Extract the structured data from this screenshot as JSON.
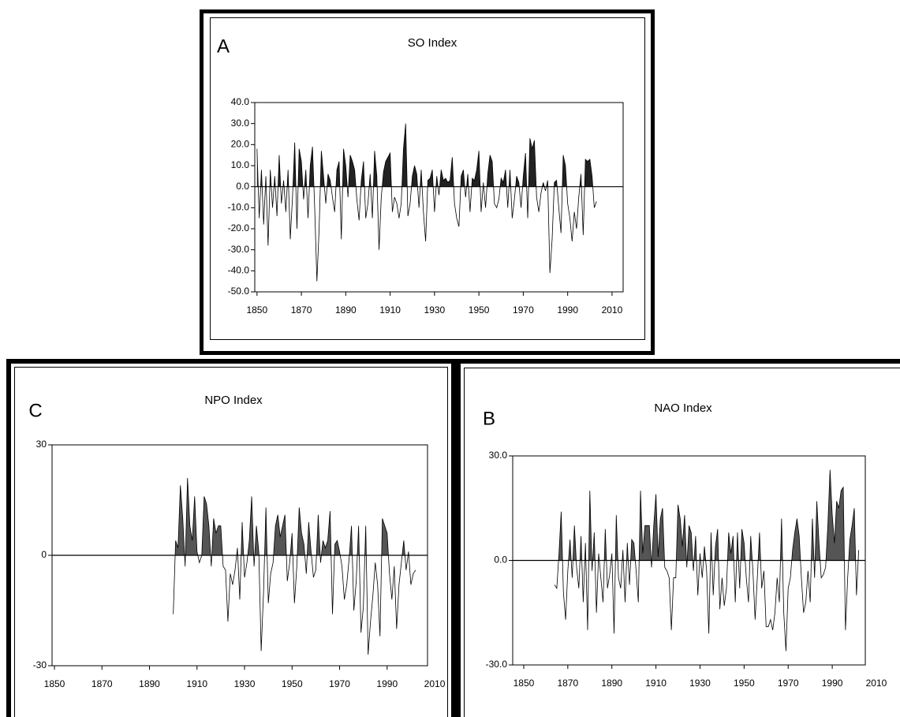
{
  "chart_data": [
    {
      "type": "line",
      "panel_label": "A",
      "title": "SO Index",
      "color": "#000000",
      "fill_color": "#222222",
      "zero_line": true,
      "x": [
        1850,
        1851,
        1852,
        1853,
        1854,
        1855,
        1856,
        1857,
        1858,
        1859,
        1860,
        1861,
        1862,
        1863,
        1864,
        1865,
        1866,
        1867,
        1868,
        1869,
        1870,
        1871,
        1872,
        1873,
        1874,
        1875,
        1876,
        1877,
        1878,
        1879,
        1880,
        1881,
        1882,
        1883,
        1884,
        1885,
        1886,
        1887,
        1888,
        1889,
        1890,
        1891,
        1892,
        1893,
        1894,
        1895,
        1896,
        1897,
        1898,
        1899,
        1900,
        1901,
        1902,
        1903,
        1904,
        1905,
        1906,
        1907,
        1908,
        1909,
        1910,
        1911,
        1912,
        1913,
        1914,
        1915,
        1916,
        1917,
        1918,
        1919,
        1920,
        1921,
        1922,
        1923,
        1924,
        1925,
        1926,
        1927,
        1928,
        1929,
        1930,
        1931,
        1932,
        1933,
        1934,
        1935,
        1936,
        1937,
        1938,
        1939,
        1940,
        1941,
        1942,
        1943,
        1944,
        1945,
        1946,
        1947,
        1948,
        1949,
        1950,
        1951,
        1952,
        1953,
        1954,
        1955,
        1956,
        1957,
        1958,
        1959,
        1960,
        1961,
        1962,
        1963,
        1964,
        1965,
        1966,
        1967,
        1968,
        1969,
        1970,
        1971,
        1972,
        1973,
        1974,
        1975,
        1976,
        1977,
        1978,
        1979,
        1980,
        1981,
        1982,
        1983,
        1984,
        1985,
        1986,
        1987,
        1988,
        1989,
        1990,
        1991,
        1992,
        1993,
        1994,
        1995,
        1996,
        1997,
        1998,
        1999,
        2000,
        2001,
        2002,
        2003
      ],
      "values": [
        18,
        -15,
        8,
        -18,
        5,
        -28,
        8,
        -10,
        5,
        -14,
        15,
        -8,
        3,
        -12,
        8,
        -25,
        -5,
        21,
        -20,
        18,
        12,
        -6,
        8,
        -15,
        10,
        19,
        -10,
        -45,
        -20,
        17,
        5,
        -8,
        6,
        3,
        -5,
        -12,
        8,
        12,
        -25,
        18,
        10,
        -5,
        15,
        12,
        8,
        -6,
        -16,
        3,
        12,
        -15,
        -8,
        6,
        -15,
        17,
        5,
        -30,
        -5,
        7,
        12,
        14,
        16,
        -12,
        -5,
        -8,
        -15,
        -8,
        18,
        30,
        -14,
        -8,
        5,
        10,
        6,
        -10,
        8,
        -12,
        -26,
        3,
        4,
        8,
        -12,
        5,
        -4,
        8,
        3,
        4,
        2,
        3,
        14,
        -8,
        -15,
        -19,
        5,
        8,
        -5,
        6,
        -12,
        4,
        3,
        8,
        17,
        -12,
        2,
        -10,
        6,
        15,
        12,
        -8,
        -10,
        -6,
        4,
        2,
        8,
        -10,
        8,
        -15,
        -6,
        5,
        2,
        -10,
        5,
        16,
        -15,
        23,
        18,
        22,
        -5,
        -12,
        -3,
        2,
        -2,
        3,
        -41,
        -25,
        2,
        3,
        -10,
        -22,
        15,
        10,
        -8,
        -15,
        -26,
        -12,
        -20,
        -5,
        6,
        -23,
        13,
        12,
        13,
        5,
        -10,
        -7
      ],
      "xlim": [
        1849,
        2015
      ],
      "xticks": [
        1850,
        1870,
        1890,
        1910,
        1930,
        1950,
        1970,
        1990,
        2010
      ],
      "ylim": [
        -50,
        40
      ],
      "yticks": [
        {
          "value": 40,
          "label": "40.0"
        },
        {
          "value": 30,
          "label": "30.0"
        },
        {
          "value": 20,
          "label": "20.0"
        },
        {
          "value": 10,
          "label": "10.0"
        },
        {
          "value": 0,
          "label": "0.0"
        },
        {
          "value": -10,
          "label": "-10.0"
        },
        {
          "value": -20,
          "label": "-20.0"
        },
        {
          "value": -30,
          "label": "-30.0"
        },
        {
          "value": -40,
          "label": "-40.0"
        },
        {
          "value": -50,
          "label": "-50.0"
        }
      ]
    },
    {
      "type": "line",
      "panel_label": "C",
      "title": "NPO Index",
      "color": "#000000",
      "fill_color": "#555555",
      "zero_line": true,
      "x": [
        1900,
        1901,
        1902,
        1903,
        1904,
        1905,
        1906,
        1907,
        1908,
        1909,
        1910,
        1911,
        1912,
        1913,
        1914,
        1915,
        1916,
        1917,
        1918,
        1919,
        1920,
        1921,
        1922,
        1923,
        1924,
        1925,
        1926,
        1927,
        1928,
        1929,
        1930,
        1931,
        1932,
        1933,
        1934,
        1935,
        1936,
        1937,
        1938,
        1939,
        1940,
        1941,
        1942,
        1943,
        1944,
        1945,
        1946,
        1947,
        1948,
        1949,
        1950,
        1951,
        1952,
        1953,
        1954,
        1955,
        1956,
        1957,
        1958,
        1959,
        1960,
        1961,
        1962,
        1963,
        1964,
        1965,
        1966,
        1967,
        1968,
        1969,
        1970,
        1971,
        1972,
        1973,
        1974,
        1975,
        1976,
        1977,
        1978,
        1979,
        1980,
        1981,
        1982,
        1983,
        1984,
        1985,
        1986,
        1987,
        1988,
        1989,
        1990,
        1991,
        1992,
        1993,
        1994,
        1995,
        1996,
        1997,
        1998,
        1999,
        2000,
        2001,
        2002
      ],
      "values": [
        -16,
        4,
        2,
        19,
        10,
        -3,
        21,
        8,
        4,
        16,
        1,
        -2,
        0,
        16,
        14,
        8,
        -3,
        10,
        6,
        8,
        8,
        -3,
        -4,
        -18,
        -5,
        -8,
        -4,
        2,
        -12,
        9,
        -6,
        -2,
        4,
        16,
        -3,
        8,
        1,
        -26,
        -10,
        13,
        -13,
        -5,
        -2,
        8,
        11,
        5,
        8,
        11,
        -7,
        -2,
        6,
        -13,
        -3,
        13,
        6,
        3,
        -5,
        9,
        1,
        -6,
        -4,
        11,
        -2,
        4,
        2,
        4,
        12,
        -16,
        3,
        4,
        1,
        -3,
        -12,
        -8,
        -1,
        8,
        -15,
        -7,
        8,
        -21,
        -14,
        8,
        -27,
        -18,
        -11,
        -2,
        -8,
        -22,
        10,
        8,
        6,
        -5,
        -12,
        -3,
        -20,
        -8,
        -2,
        4,
        -4,
        1,
        -8,
        -5,
        -4
      ],
      "xlim": [
        1849,
        2007
      ],
      "xticks": [
        1850,
        1870,
        1890,
        1910,
        1930,
        1950,
        1970,
        1990,
        2010
      ],
      "ylim": [
        -30,
        30
      ],
      "yticks": [
        30,
        0,
        -30
      ]
    },
    {
      "type": "line",
      "panel_label": "B",
      "title": "NAO Index",
      "color": "#000000",
      "fill_color": "#555555",
      "zero_line": true,
      "x": [
        1864,
        1865,
        1866,
        1867,
        1868,
        1869,
        1870,
        1871,
        1872,
        1873,
        1874,
        1875,
        1876,
        1877,
        1878,
        1879,
        1880,
        1881,
        1882,
        1883,
        1884,
        1885,
        1886,
        1887,
        1888,
        1889,
        1890,
        1891,
        1892,
        1893,
        1894,
        1895,
        1896,
        1897,
        1898,
        1899,
        1900,
        1901,
        1902,
        1903,
        1904,
        1905,
        1906,
        1907,
        1908,
        1909,
        1910,
        1911,
        1912,
        1913,
        1914,
        1915,
        1916,
        1917,
        1918,
        1919,
        1920,
        1921,
        1922,
        1923,
        1924,
        1925,
        1926,
        1927,
        1928,
        1929,
        1930,
        1931,
        1932,
        1933,
        1934,
        1935,
        1936,
        1937,
        1938,
        1939,
        1940,
        1941,
        1942,
        1943,
        1944,
        1945,
        1946,
        1947,
        1948,
        1949,
        1950,
        1951,
        1952,
        1953,
        1954,
        1955,
        1956,
        1957,
        1958,
        1959,
        1960,
        1961,
        1962,
        1963,
        1964,
        1965,
        1966,
        1967,
        1968,
        1969,
        1970,
        1971,
        1972,
        1973,
        1974,
        1975,
        1976,
        1977,
        1978,
        1979,
        1980,
        1981,
        1982,
        1983,
        1984,
        1985,
        1986,
        1987,
        1988,
        1989,
        1990,
        1991,
        1992,
        1993,
        1994,
        1995,
        1996,
        1997,
        1998,
        1999,
        2000,
        2001,
        2002
      ],
      "values": [
        -7,
        -8,
        2,
        14,
        -9,
        -17,
        -3,
        6,
        -5,
        10,
        -2,
        -8,
        7,
        -12,
        5,
        -20,
        20,
        -3,
        8,
        -15,
        2,
        -5,
        -12,
        9,
        -8,
        -4,
        2,
        -21,
        13,
        -5,
        -8,
        3,
        -12,
        5,
        -7,
        6,
        5,
        -3,
        -12,
        20,
        2,
        10,
        10,
        10,
        -2,
        10,
        19,
        1,
        12,
        15,
        -2,
        -3,
        -5,
        -20,
        -5,
        -5,
        16,
        12,
        4,
        13,
        -2,
        10,
        8,
        -3,
        7,
        -10,
        2,
        -5,
        4,
        -3,
        -21,
        8,
        -10,
        4,
        9,
        -14,
        -5,
        -13,
        -8,
        8,
        2,
        7,
        -12,
        8,
        -8,
        9,
        5,
        -5,
        -12,
        7,
        -3,
        -17,
        -5,
        8,
        -8,
        -3,
        -19,
        -19,
        -17,
        -20,
        -15,
        -5,
        -12,
        12,
        -15,
        -26,
        -8,
        -5,
        3,
        8,
        12,
        7,
        -5,
        -15,
        -12,
        -3,
        -12,
        12,
        -5,
        17,
        5,
        -5,
        -4,
        -2,
        10,
        26,
        13,
        5,
        17,
        15,
        20,
        21,
        -20,
        -5,
        6,
        10,
        15,
        -10,
        3
      ],
      "xlim": [
        1845,
        2005
      ],
      "xticks": [
        1850,
        1870,
        1890,
        1910,
        1930,
        1950,
        1970,
        1990,
        2010
      ],
      "ylim": [
        -30,
        30
      ],
      "yticks": [
        {
          "value": 30,
          "label": "30.0"
        },
        {
          "value": 0,
          "label": "0.0"
        },
        {
          "value": -30,
          "label": "-30.0"
        }
      ]
    }
  ]
}
